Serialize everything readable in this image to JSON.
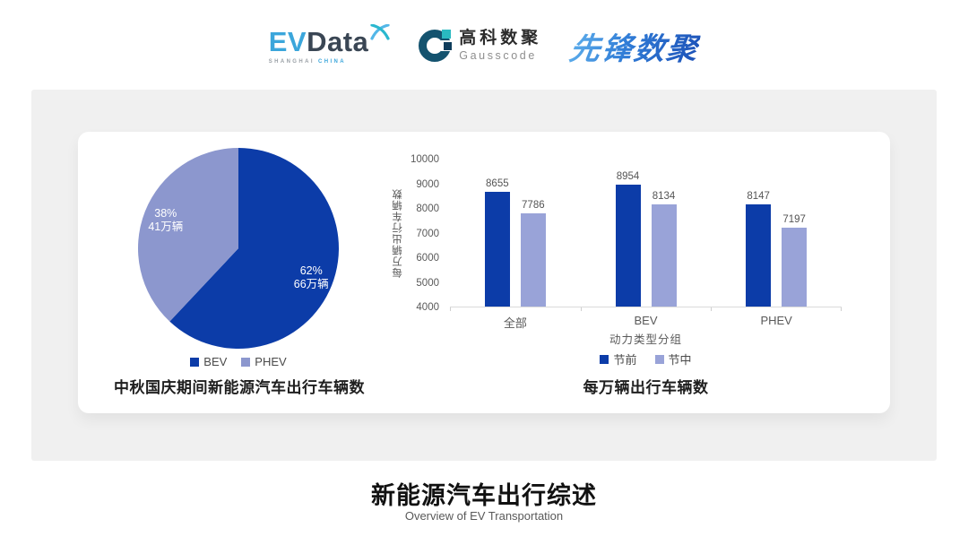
{
  "header": {
    "evdata": {
      "ev": "EV",
      "data": "Data",
      "sub_left": "SHANGHAI",
      "sub_right": "CHINA"
    },
    "gausscode": {
      "cn": "高科数聚",
      "en": "Gausscode"
    },
    "xianfeng": {
      "text": "先锋数聚"
    }
  },
  "colors": {
    "primary_dark_blue": "#0C3CA8",
    "pie_light_blue": "#8C97CE",
    "bar_light_blue": "#99A3D8",
    "panel_gray": "#F0F0F0",
    "axis_line": "#DBDBDB"
  },
  "chart_data": [
    {
      "type": "pie",
      "title": "中秋国庆期间新能源汽车出行车辆数",
      "start_angle_deg_from_top": 0,
      "direction": "clockwise",
      "slices": [
        {
          "label": "BEV",
          "percent": 62,
          "value_label": "66万辆",
          "color": "#0C3CA8"
        },
        {
          "label": "PHEV",
          "percent": 38,
          "value_label": "41万辆",
          "color": "#8C97CE"
        }
      ],
      "legend_position": "bottom"
    },
    {
      "type": "bar",
      "title": "每万辆出行车辆数",
      "categories": [
        "全部",
        "BEV",
        "PHEV"
      ],
      "series": [
        {
          "name": "节前",
          "color": "#0C3CA8",
          "values": [
            8655,
            8954,
            8147
          ]
        },
        {
          "name": "节中",
          "color": "#99A3D8",
          "values": [
            7786,
            8134,
            7197
          ]
        }
      ],
      "xlabel": "动力类型分组",
      "ylabel": "每万辆出行车辆数",
      "ylim": [
        4000,
        10000
      ],
      "ytick_step": 1000,
      "grid": false,
      "legend_position": "bottom"
    }
  ],
  "footer": {
    "title": "新能源汽车出行综述",
    "subtitle": "Overview of EV Transportation"
  }
}
